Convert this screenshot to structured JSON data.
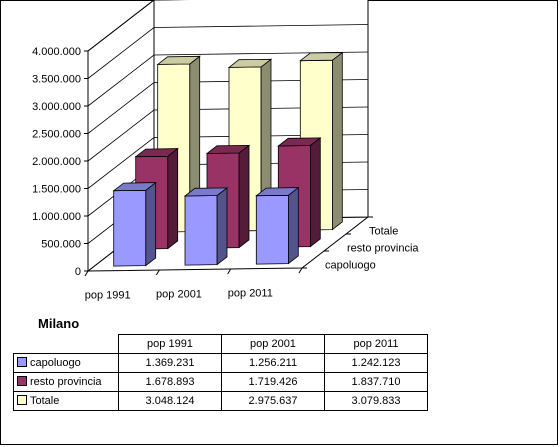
{
  "chart_data": {
    "type": "bar",
    "title": "Milano",
    "categories": [
      "pop 1991",
      "pop 2001",
      "pop 2011"
    ],
    "series": [
      {
        "name": "capoluogo",
        "values": [
          1369231,
          1256211,
          1242123
        ],
        "color": "#9999ff"
      },
      {
        "name": "resto provincia",
        "values": [
          1678893,
          1719426,
          1837710
        ],
        "color": "#993366"
      },
      {
        "name": "Totale",
        "values": [
          3048124,
          2975637,
          3079833
        ],
        "color": "#ffffcc"
      }
    ],
    "ylim": [
      0,
      4000000
    ],
    "yticks": [
      "0",
      "500.000",
      "1.000.000",
      "1.500.000",
      "2.000.000",
      "2.500.000",
      "3.000.000",
      "3.500.000",
      "4.000.000"
    ],
    "grid": true,
    "projection": "3d-clustered-depth",
    "legend": "data-table"
  },
  "table": {
    "headers": [
      "pop 1991",
      "pop 2001",
      "pop 2011"
    ],
    "rows": [
      {
        "label": "capoluogo",
        "color": "#9999ff",
        "cells": [
          "1.369.231",
          "1.256.211",
          "1.242.123"
        ]
      },
      {
        "label": "resto provincia",
        "color": "#993366",
        "cells": [
          "1.678.893",
          "1.719.426",
          "1.837.710"
        ]
      },
      {
        "label": "Totale",
        "color": "#ffffcc",
        "cells": [
          "3.048.124",
          "2.975.637",
          "3.079.833"
        ]
      }
    ]
  }
}
